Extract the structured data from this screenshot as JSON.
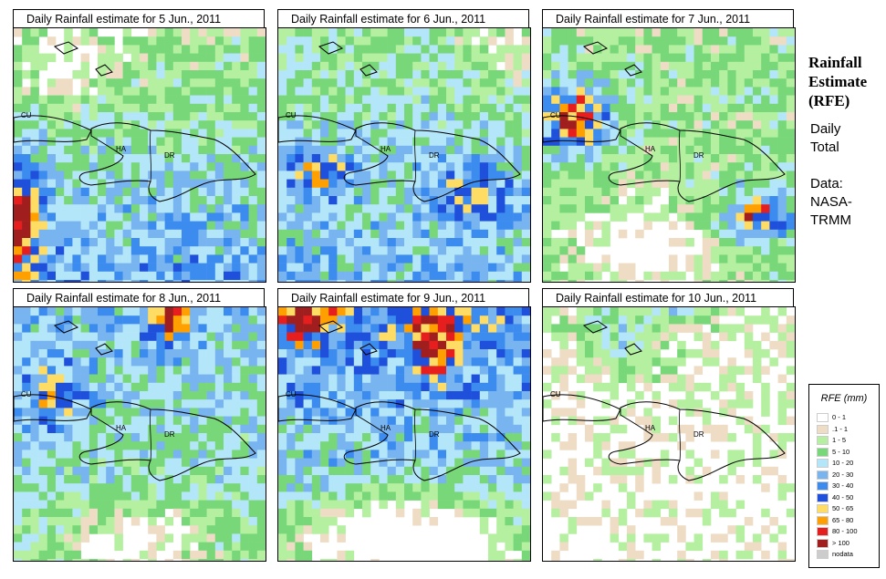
{
  "panels": [
    {
      "title": "Daily Rainfall estimate for  5 Jun., 2011"
    },
    {
      "title": "Daily Rainfall estimate for  6 Jun., 2011"
    },
    {
      "title": "Daily Rainfall estimate for  7 Jun., 2011"
    },
    {
      "title": "Daily Rainfall estimate for  8 Jun., 2011"
    },
    {
      "title": "Daily Rainfall estimate for  9 Jun., 2011"
    },
    {
      "title": "Daily Rainfall estimate for  10 Jun., 2011"
    }
  ],
  "country_labels": {
    "cu": "CU",
    "ha": "HA",
    "dr": "DR"
  },
  "sidebar": {
    "title_line1": "Rainfall",
    "title_line2": "Estimate",
    "title_line3": "(RFE)",
    "subtitle_line1": "Daily",
    "subtitle_line2": "Total",
    "source_line1": "Data:",
    "source_line2": "NASA-",
    "source_line3": "TRMM"
  },
  "legend": {
    "title": "RFE (mm)",
    "items": [
      {
        "label": "0 - 1",
        "color": "#ffffff"
      },
      {
        "label": ".1 - 1",
        "color": "#eedcc4"
      },
      {
        "label": "1 - 5",
        "color": "#b4f0a0"
      },
      {
        "label": "5 - 10",
        "color": "#78d778"
      },
      {
        "label": "10 - 20",
        "color": "#b4e6fa"
      },
      {
        "label": "20 - 30",
        "color": "#78b4f0"
      },
      {
        "label": "30 - 40",
        "color": "#3c8cf0"
      },
      {
        "label": "40 - 50",
        "color": "#1e50dc"
      },
      {
        "label": "50 - 65",
        "color": "#ffdc64"
      },
      {
        "label": "65 - 80",
        "color": "#ffa000"
      },
      {
        "label": "80 - 100",
        "color": "#e61e1e"
      },
      {
        "label": "> 100",
        "color": "#a01e1e"
      },
      {
        "label": "nodata",
        "color": "#cccccc"
      }
    ]
  }
}
